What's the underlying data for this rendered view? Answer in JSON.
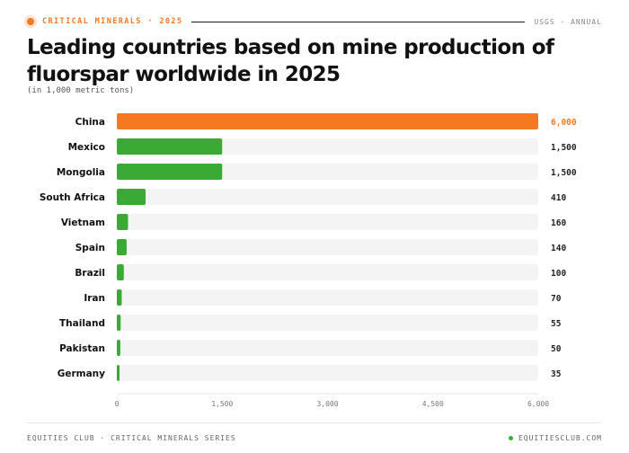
{
  "header": {
    "kicker": "CRITICAL MINERALS · 2025",
    "source": "USGS · ANNUAL"
  },
  "chart_data": {
    "type": "bar",
    "orientation": "horizontal",
    "title": "Leading countries based on mine production of fluorspar worldwide in 2025",
    "subtitle": "(in 1,000 metric tons)",
    "xlabel": "",
    "ylabel": "",
    "categories": [
      "China",
      "Mexico",
      "Mongolia",
      "South Africa",
      "Vietnam",
      "Spain",
      "Brazil",
      "Iran",
      "Thailand",
      "Pakistan",
      "Germany"
    ],
    "values": [
      6000,
      1500,
      1500,
      410,
      160,
      140,
      100,
      70,
      55,
      50,
      35
    ],
    "value_labels": [
      "6,000",
      "1,500",
      "1,500",
      "410",
      "160",
      "140",
      "100",
      "70",
      "55",
      "50",
      "35"
    ],
    "xlim": [
      0,
      6000
    ],
    "x_ticks": [
      0,
      1500,
      3000,
      4500,
      6000
    ],
    "x_tick_labels": [
      "0",
      "1,500",
      "3,000",
      "4,500",
      "6,000"
    ],
    "grid": false,
    "colors": {
      "highlight": "#f47920",
      "bar": "#3aaa35",
      "track": "#f3f4f3",
      "highlight_index": 0
    }
  },
  "footer": {
    "left": "EQUITIES CLUB · CRITICAL MINERALS SERIES",
    "right": "EQUITIESCLUB.COM"
  }
}
